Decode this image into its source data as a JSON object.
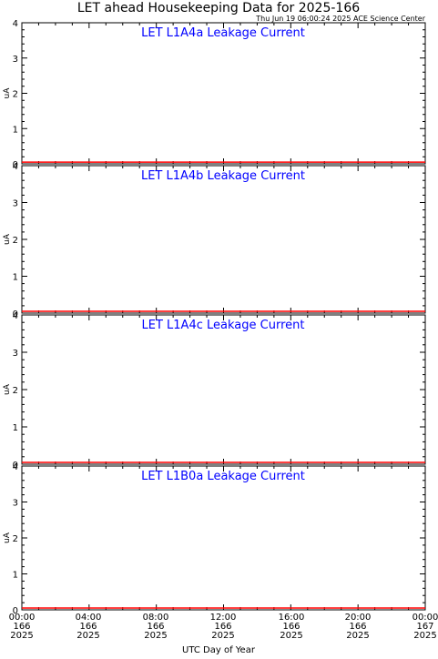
{
  "figure": {
    "title": "LET ahead Housekeeping Data for 2025-166",
    "timestamp": "Thu Jun 19 06:00:24 2025 ACE Science Center",
    "xlabel": "UTC Day of Year"
  },
  "colors": {
    "axis": "#000000",
    "panel_title": "#0000ff",
    "series_line": "#ff0000",
    "background": "#ffffff"
  },
  "chart_data": [
    {
      "type": "line",
      "title": "LET L1A4a Leakage Current",
      "ylabel": "uA",
      "ylim": [
        0,
        4
      ],
      "yticks": [
        "0",
        "1",
        "2",
        "3",
        "4"
      ],
      "xlim": [
        "2025-166 00:00",
        "2025-167 00:00"
      ],
      "x": [
        "2025-166 00:00",
        "2025-167 00:00"
      ],
      "series": [
        {
          "values": [
            0.05,
            0.05
          ]
        }
      ]
    },
    {
      "type": "line",
      "title": "LET L1A4b Leakage Current",
      "ylabel": "uA",
      "ylim": [
        0,
        4
      ],
      "yticks": [
        "0",
        "1",
        "2",
        "3",
        "4"
      ],
      "xlim": [
        "2025-166 00:00",
        "2025-167 00:00"
      ],
      "x": [
        "2025-166 00:00",
        "2025-167 00:00"
      ],
      "series": [
        {
          "values": [
            0.05,
            0.05
          ]
        }
      ]
    },
    {
      "type": "line",
      "title": "LET L1A4c Leakage Current",
      "ylabel": "uA",
      "ylim": [
        0,
        4
      ],
      "yticks": [
        "0",
        "1",
        "2",
        "3",
        "4"
      ],
      "xlim": [
        "2025-166 00:00",
        "2025-167 00:00"
      ],
      "x": [
        "2025-166 00:00",
        "2025-167 00:00"
      ],
      "series": [
        {
          "values": [
            0.05,
            0.05
          ]
        }
      ]
    },
    {
      "type": "line",
      "title": "LET L1B0a Leakage Current",
      "ylabel": "uA",
      "ylim": [
        0,
        4
      ],
      "yticks": [
        "0",
        "1",
        "2",
        "3",
        "4"
      ],
      "xlim": [
        "2025-166 00:00",
        "2025-167 00:00"
      ],
      "x": [
        "2025-166 00:00",
        "2025-167 00:00"
      ],
      "series": [
        {
          "values": [
            0.05,
            0.05
          ]
        }
      ]
    }
  ],
  "x_axis": {
    "ticks": [
      {
        "time": "00:00",
        "day": "166",
        "year": "2025"
      },
      {
        "time": "04:00",
        "day": "166",
        "year": "2025"
      },
      {
        "time": "08:00",
        "day": "166",
        "year": "2025"
      },
      {
        "time": "12:00",
        "day": "166",
        "year": "2025"
      },
      {
        "time": "16:00",
        "day": "166",
        "year": "2025"
      },
      {
        "time": "20:00",
        "day": "166",
        "year": "2025"
      },
      {
        "time": "00:00",
        "day": "167",
        "year": "2025"
      }
    ]
  }
}
